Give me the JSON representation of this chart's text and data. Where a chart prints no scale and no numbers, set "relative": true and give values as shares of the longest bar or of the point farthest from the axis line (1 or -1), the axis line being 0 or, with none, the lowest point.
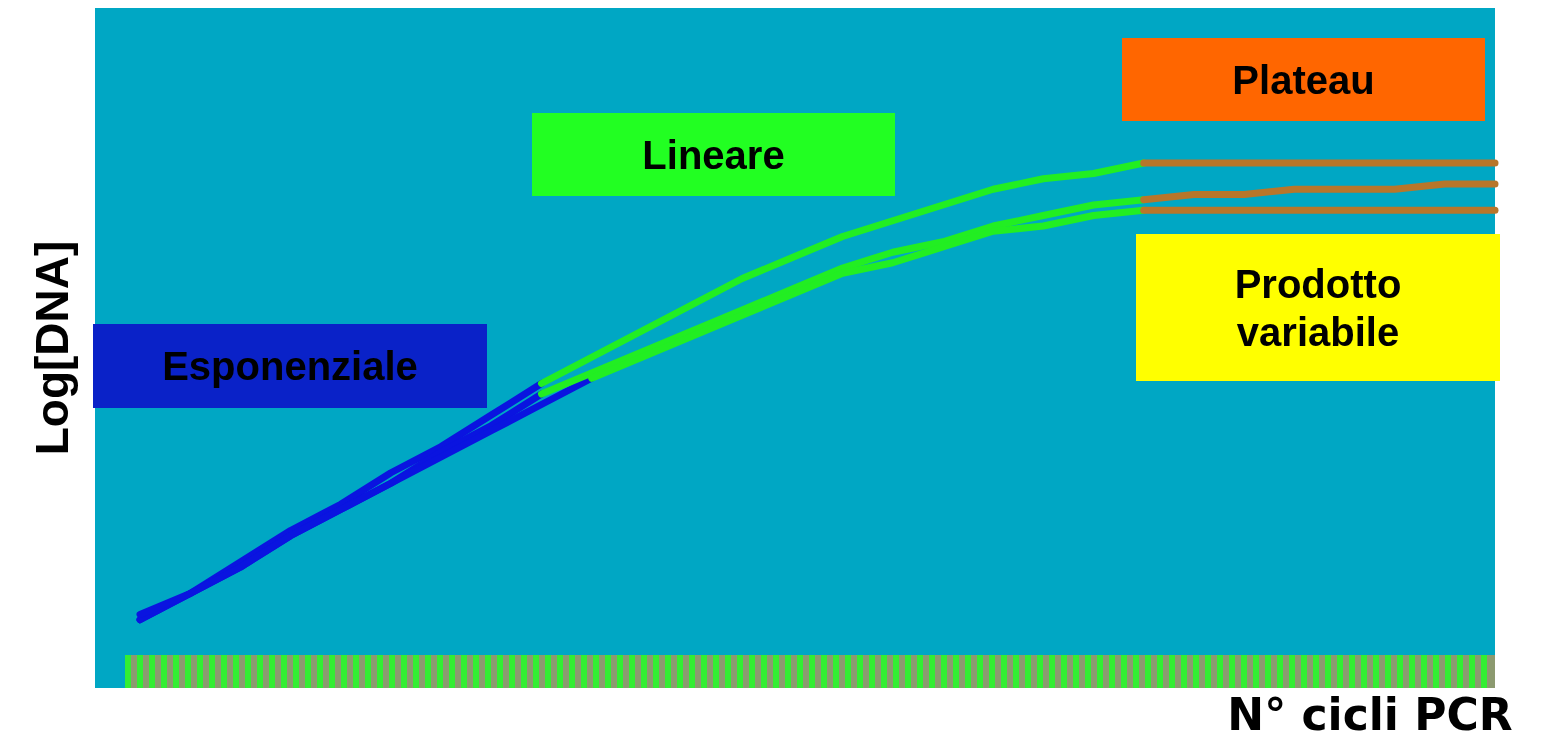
{
  "chart_data": {
    "type": "line",
    "relative": true,
    "xlabel": "N° cicli PCR",
    "ylabel": "Log[DNA]",
    "categories": [
      null,
      null,
      null,
      null,
      null,
      null,
      null,
      null,
      null,
      null,
      null,
      null,
      null,
      null,
      null,
      null,
      null,
      null,
      null,
      null,
      null,
      null,
      null,
      null,
      null,
      null,
      null,
      null
    ],
    "series": [
      {
        "color": "#0a14e0",
        "values": [
          0.13,
          0.18,
          0.24,
          0.3,
          0.35,
          0.41,
          0.46,
          0.52,
          0.58,
          null,
          null,
          null,
          null,
          null,
          null,
          null,
          null,
          null,
          null,
          null,
          null,
          null,
          null,
          null,
          null,
          null,
          null,
          null
        ]
      },
      {
        "color": "#0a14e0",
        "values": [
          0.13,
          0.18,
          0.23,
          0.29,
          0.34,
          0.39,
          0.45,
          0.5,
          0.56,
          null,
          null,
          null,
          null,
          null,
          null,
          null,
          null,
          null,
          null,
          null,
          null,
          null,
          null,
          null,
          null,
          null,
          null,
          null
        ]
      },
      {
        "color": "#0a14e0",
        "values": [
          0.14,
          0.18,
          0.23,
          0.29,
          0.34,
          0.39,
          0.44,
          0.49,
          0.54,
          0.59,
          null,
          null,
          null,
          null,
          null,
          null,
          null,
          null,
          null,
          null,
          null,
          null,
          null,
          null,
          null,
          null,
          null,
          null
        ]
      },
      {
        "color": "#22ee22",
        "values": [
          null,
          null,
          null,
          null,
          null,
          null,
          null,
          null,
          0.58,
          0.63,
          0.68,
          0.73,
          0.78,
          0.82,
          0.86,
          0.89,
          0.92,
          0.95,
          0.97,
          0.98,
          1,
          null,
          null,
          null,
          null,
          null,
          null,
          null
        ]
      },
      {
        "color": "#22ee22",
        "values": [
          null,
          null,
          null,
          null,
          null,
          null,
          null,
          null,
          0.56,
          0.6,
          0.64,
          0.68,
          0.72,
          0.76,
          0.8,
          0.83,
          0.85,
          0.88,
          0.9,
          0.92,
          0.93,
          null,
          null,
          null,
          null,
          null,
          null,
          null
        ]
      },
      {
        "color": "#22ee22",
        "values": [
          null,
          null,
          null,
          null,
          null,
          null,
          null,
          null,
          null,
          0.59,
          0.63,
          0.67,
          0.71,
          0.75,
          0.79,
          0.81,
          0.84,
          0.87,
          0.88,
          0.9,
          0.91,
          null,
          null,
          null,
          null,
          null,
          null,
          null
        ]
      },
      {
        "color": "#b8762a",
        "values": [
          null,
          null,
          null,
          null,
          null,
          null,
          null,
          null,
          null,
          null,
          null,
          null,
          null,
          null,
          null,
          null,
          null,
          null,
          null,
          null,
          1,
          1,
          1,
          1,
          1,
          1,
          1,
          1
        ]
      },
      {
        "color": "#b8762a",
        "values": [
          null,
          null,
          null,
          null,
          null,
          null,
          null,
          null,
          null,
          null,
          null,
          null,
          null,
          null,
          null,
          null,
          null,
          null,
          null,
          null,
          0.93,
          0.94,
          0.94,
          0.95,
          0.95,
          0.95,
          0.96,
          0.96
        ]
      },
      {
        "color": "#b8762a",
        "values": [
          null,
          null,
          null,
          null,
          null,
          null,
          null,
          null,
          null,
          null,
          null,
          null,
          null,
          null,
          null,
          null,
          null,
          null,
          null,
          null,
          0.91,
          0.91,
          0.91,
          0.91,
          0.91,
          0.91,
          0.91,
          0.91
        ]
      }
    ],
    "annotations": [
      "Esponenziale",
      "Lineare",
      "Plateau",
      "Prodotto variabile"
    ]
  }
}
